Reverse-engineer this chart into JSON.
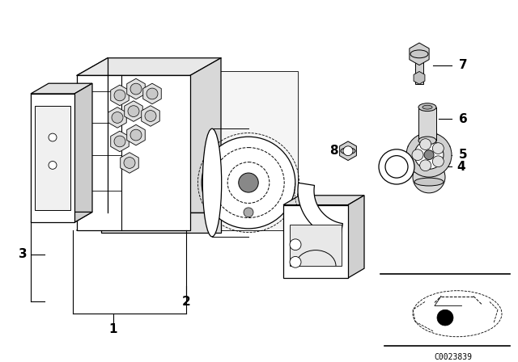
{
  "bg_color": "#ffffff",
  "line_color": "#000000",
  "fig_width": 6.4,
  "fig_height": 4.48,
  "dpi": 100,
  "diagram_code": "C0023839"
}
